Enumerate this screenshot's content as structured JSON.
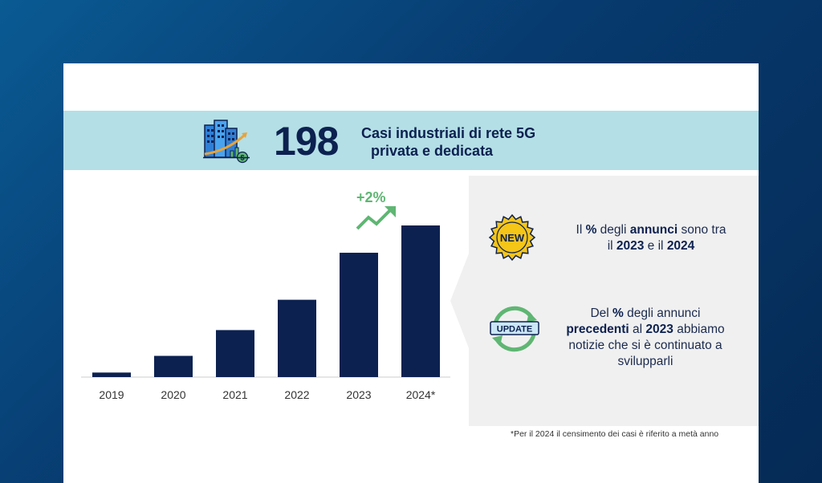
{
  "banner": {
    "value": "198",
    "line1": "Casi industriali di rete 5G",
    "line2": "privata e dedicata"
  },
  "growth_label": "+2%",
  "chart_data": {
    "type": "bar",
    "categories": [
      "2019",
      "2020",
      "2021",
      "2022",
      "2023",
      "2024*"
    ],
    "values": [
      3,
      14,
      31,
      51,
      82,
      100
    ],
    "ylim": [
      0,
      100
    ],
    "grid": false
  },
  "notes": {
    "new_badge": "NEW",
    "new_parts": [
      "Il ",
      "%",
      " degli ",
      "annunci",
      " sono tra",
      "il ",
      "2023",
      " e il ",
      "2024"
    ],
    "update_badge": "UPDATE",
    "update_parts": [
      "Del ",
      "%",
      " degli annunci",
      "precedenti",
      " al ",
      "2023",
      " abbiamo",
      "notizie che si è continuato a",
      "svilupparli"
    ]
  },
  "footnote": "*Per il 2024 il censimento dei casi è riferito a metà anno",
  "colors": {
    "bar": "#0c2150",
    "banner_bg": "#b4dfe6",
    "panel_bg": "#f0f0f0",
    "growth": "#5fb673",
    "badge": "#f5c518"
  }
}
